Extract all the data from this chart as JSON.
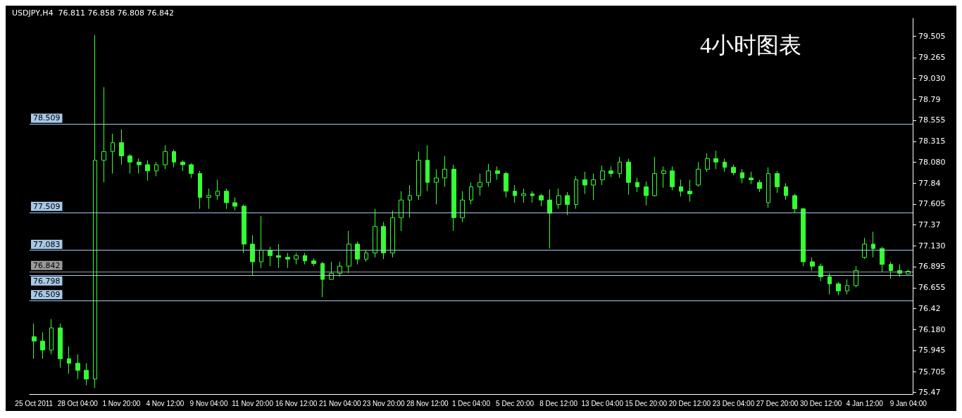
{
  "chart_data": {
    "type": "candlestick",
    "title": "USDJPY,H4  76.811 76.858 76.808 76.842",
    "annotations": [
      "4小时图表"
    ],
    "color": "#33ff33",
    "categories": [
      "25 Oct 2011",
      null,
      null,
      null,
      null,
      "28 Oct 04:00",
      null,
      null,
      null,
      null,
      "1 Nov 20:00",
      null,
      null,
      null,
      null,
      "4 Nov 12:00",
      null,
      null,
      null,
      null,
      "9 Nov 04:00",
      null,
      null,
      null,
      null,
      "11 Nov 20:00",
      null,
      null,
      null,
      null,
      "16 Nov 12:00",
      null,
      null,
      null,
      null,
      "21 Nov 04:00",
      null,
      null,
      null,
      null,
      "23 Nov 20:00",
      null,
      null,
      null,
      null,
      "28 Nov 12:00",
      null,
      null,
      null,
      null,
      "1 Dec 04:00",
      null,
      null,
      null,
      null,
      "5 Dec 20:00",
      null,
      null,
      null,
      null,
      "8 Dec 12:00",
      null,
      null,
      null,
      null,
      "13 Dec 04:00",
      null,
      null,
      null,
      null,
      "15 Dec 20:00",
      null,
      null,
      null,
      null,
      "20 Dec 12:00",
      null,
      null,
      null,
      null,
      "23 Dec 04:00",
      null,
      null,
      null,
      null,
      "27 Dec 20:00",
      null,
      null,
      null,
      null,
      "30 Dec 12:00",
      null,
      null,
      null,
      null,
      "4 Jan 12:00",
      null,
      null,
      null,
      null,
      "9 Jan 04:00"
    ],
    "ohlc": [
      [
        76.1,
        76.25,
        75.85,
        76.05
      ],
      [
        76.05,
        76.15,
        75.85,
        75.95
      ],
      [
        75.95,
        76.3,
        75.9,
        76.2
      ],
      [
        76.2,
        76.25,
        75.75,
        75.85
      ],
      [
        75.85,
        75.99,
        75.68,
        75.8
      ],
      [
        75.8,
        75.9,
        75.62,
        75.72
      ],
      [
        75.72,
        75.8,
        75.55,
        75.62
      ],
      [
        75.62,
        79.52,
        75.52,
        78.1
      ],
      [
        78.1,
        78.93,
        77.85,
        78.2
      ],
      [
        78.2,
        78.4,
        77.95,
        78.3
      ],
      [
        78.3,
        78.45,
        78.05,
        78.15
      ],
      [
        78.15,
        78.17,
        77.95,
        78.08
      ],
      [
        78.08,
        78.12,
        77.95,
        78.05
      ],
      [
        78.05,
        78.1,
        77.87,
        77.98
      ],
      [
        77.98,
        78.08,
        77.92,
        78.05
      ],
      [
        78.05,
        78.27,
        78.0,
        78.2
      ],
      [
        78.2,
        78.22,
        78.02,
        78.08
      ],
      [
        78.08,
        78.1,
        77.98,
        78.05
      ],
      [
        78.05,
        78.07,
        77.9,
        77.95
      ],
      [
        77.95,
        77.98,
        77.55,
        77.68
      ],
      [
        77.68,
        77.78,
        77.55,
        77.7
      ],
      [
        77.7,
        77.88,
        77.65,
        77.75
      ],
      [
        77.75,
        77.78,
        77.55,
        77.62
      ],
      [
        77.62,
        77.68,
        77.53,
        77.58
      ],
      [
        77.58,
        77.6,
        77.05,
        77.15
      ],
      [
        77.15,
        77.25,
        76.8,
        76.95
      ],
      [
        76.95,
        77.47,
        76.88,
        77.08
      ],
      [
        77.08,
        77.12,
        76.9,
        77.02
      ],
      [
        77.02,
        77.15,
        76.88,
        77.0
      ],
      [
        77.0,
        77.05,
        76.88,
        76.98
      ],
      [
        76.98,
        77.05,
        76.92,
        77.02
      ],
      [
        77.02,
        77.05,
        76.92,
        76.96
      ],
      [
        76.96,
        76.99,
        76.9,
        76.93
      ],
      [
        76.93,
        76.95,
        76.55,
        76.75
      ],
      [
        76.75,
        76.95,
        76.75,
        76.82
      ],
      [
        76.82,
        76.95,
        76.78,
        76.9
      ],
      [
        76.9,
        77.3,
        76.82,
        77.15
      ],
      [
        77.15,
        77.18,
        76.92,
        76.98
      ],
      [
        76.98,
        77.08,
        76.95,
        77.05
      ],
      [
        77.05,
        77.55,
        77.0,
        77.35
      ],
      [
        77.35,
        77.4,
        76.98,
        77.05
      ],
      [
        77.05,
        77.53,
        77.0,
        77.45
      ],
      [
        77.45,
        77.75,
        77.3,
        77.65
      ],
      [
        77.65,
        77.82,
        77.45,
        77.7
      ],
      [
        77.7,
        78.2,
        77.65,
        78.1
      ],
      [
        78.1,
        78.27,
        77.75,
        77.85
      ],
      [
        77.85,
        78.0,
        77.6,
        77.9
      ],
      [
        77.9,
        78.15,
        77.8,
        78.0
      ],
      [
        78.0,
        78.05,
        77.3,
        77.45
      ],
      [
        77.45,
        77.75,
        77.4,
        77.65
      ],
      [
        77.65,
        77.85,
        77.6,
        77.8
      ],
      [
        77.8,
        77.95,
        77.7,
        77.85
      ],
      [
        77.85,
        78.06,
        77.8,
        77.98
      ],
      [
        77.98,
        78.03,
        77.88,
        77.95
      ],
      [
        77.95,
        77.97,
        77.68,
        77.75
      ],
      [
        77.75,
        77.82,
        77.62,
        77.7
      ],
      [
        77.7,
        77.78,
        77.62,
        77.72
      ],
      [
        77.72,
        77.75,
        77.62,
        77.7
      ],
      [
        77.7,
        77.72,
        77.58,
        77.65
      ],
      [
        77.65,
        77.77,
        77.1,
        77.5
      ],
      [
        77.6,
        77.78,
        77.55,
        77.7
      ],
      [
        77.7,
        77.74,
        77.48,
        77.6
      ],
      [
        77.6,
        77.92,
        77.55,
        77.88
      ],
      [
        77.88,
        77.97,
        77.72,
        77.82
      ],
      [
        77.82,
        77.95,
        77.65,
        77.88
      ],
      [
        77.88,
        78.04,
        77.82,
        77.98
      ],
      [
        77.98,
        78.03,
        77.91,
        77.95
      ],
      [
        77.95,
        78.14,
        77.9,
        78.08
      ],
      [
        78.08,
        78.12,
        77.71,
        77.85
      ],
      [
        77.85,
        77.9,
        77.74,
        77.8
      ],
      [
        77.8,
        77.86,
        77.59,
        77.7
      ],
      [
        77.7,
        78.14,
        77.69,
        77.95
      ],
      [
        77.95,
        78.03,
        77.79,
        77.98
      ],
      [
        77.98,
        78.03,
        77.76,
        77.8
      ],
      [
        77.8,
        77.88,
        77.69,
        77.75
      ],
      [
        77.75,
        77.88,
        77.63,
        77.72
      ],
      [
        77.82,
        78.08,
        77.8,
        78.0
      ],
      [
        78.0,
        78.18,
        77.97,
        78.12
      ],
      [
        78.12,
        78.21,
        78.0,
        78.08
      ],
      [
        78.08,
        78.12,
        77.97,
        78.02
      ],
      [
        78.02,
        78.05,
        77.93,
        77.96
      ],
      [
        77.96,
        78.0,
        77.84,
        77.9
      ],
      [
        77.9,
        77.97,
        77.83,
        77.88
      ],
      [
        77.85,
        77.88,
        77.74,
        77.78
      ],
      [
        77.62,
        78.02,
        77.56,
        77.95
      ],
      [
        77.95,
        77.98,
        77.73,
        77.8
      ],
      [
        77.8,
        77.84,
        77.65,
        77.7
      ],
      [
        77.7,
        77.72,
        77.51,
        77.55
      ],
      [
        77.55,
        77.56,
        76.9,
        76.95
      ],
      [
        76.95,
        77.0,
        76.85,
        76.9
      ],
      [
        76.9,
        76.93,
        76.73,
        76.78
      ],
      [
        76.78,
        76.82,
        76.58,
        76.7
      ],
      [
        76.7,
        76.72,
        76.57,
        76.62
      ],
      [
        76.62,
        76.75,
        76.58,
        76.68
      ],
      [
        76.68,
        76.9,
        76.66,
        76.85
      ],
      [
        77.0,
        77.22,
        76.98,
        77.15
      ],
      [
        77.15,
        77.29,
        77.0,
        77.1
      ],
      [
        77.1,
        77.12,
        76.83,
        76.92
      ],
      [
        76.92,
        76.95,
        76.76,
        76.85
      ],
      [
        76.85,
        76.92,
        76.78,
        76.82
      ],
      [
        76.811,
        76.858,
        76.808,
        76.842
      ]
    ],
    "ylim": [
      75.45,
      79.71
    ],
    "yticks": [
      79.505,
      79.265,
      {
        "value": 79.03,
        "label": "79.030"
      },
      78.79,
      78.555,
      78.315,
      {
        "value": 78.08,
        "label": "78.080"
      },
      77.84,
      77.605,
      77.37,
      {
        "value": 77.13,
        "label": "77.130"
      },
      76.895,
      76.655,
      76.42,
      {
        "value": 76.18,
        "label": "76.180"
      },
      75.945,
      75.705,
      75.47
    ],
    "ref_lines": [
      {
        "axis": "y",
        "value": 78.509,
        "label": "78.509",
        "color": "#a8c8e8"
      },
      {
        "axis": "y",
        "value": 77.509,
        "label": "77.509",
        "color": "#a8c8e8"
      },
      {
        "axis": "y",
        "value": 77.083,
        "label": "77.083",
        "color": "#a8c8e8"
      },
      {
        "axis": "y",
        "value": 76.842,
        "label": "76.842",
        "color": "#9a9a9a"
      },
      {
        "axis": "y",
        "value": 76.798,
        "label": "76.798",
        "color": "#a8c8e8"
      },
      {
        "axis": "y",
        "value": 76.509,
        "label": "76.509",
        "color": "#a8c8e8"
      }
    ]
  }
}
